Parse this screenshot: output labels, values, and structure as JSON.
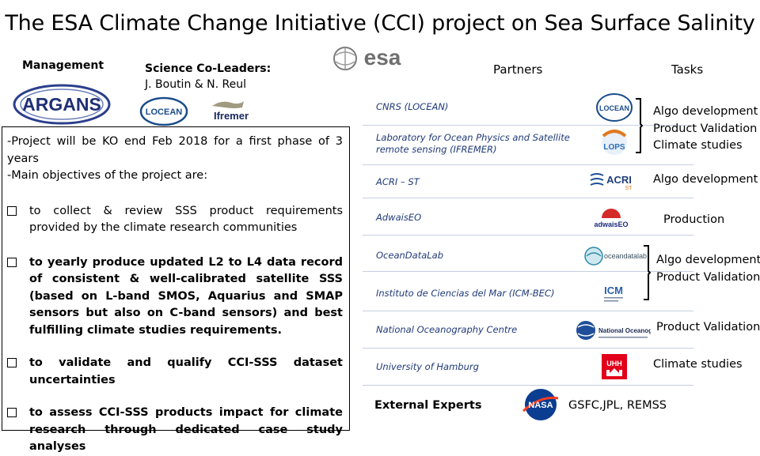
{
  "title": "The ESA Climate Change Initiative (CCI) project  on Sea Surface Salinity",
  "management": {
    "heading": "Management",
    "logo_text": "ARGANS"
  },
  "science": {
    "heading": "Science Co-Leaders:",
    "names": "J. Boutin & N. Reul",
    "logo_locean": "LOCEAN",
    "logo_ifremer": "Ifremer"
  },
  "esa_logo_text": "esa",
  "headers": {
    "partners": "Partners",
    "tasks": "Tasks"
  },
  "intro": {
    "line1": "-Project will be KO end Feb 2018 for a first phase of 3 years",
    "line2": "-Main objectives of the project are:"
  },
  "objectives": [
    "to collect & review SSS product requirements provided by the climate research communities",
    "to yearly produce updated L2 to L4 data record of consistent & well-calibrated satellite SSS (based on L-band SMOS, Aquarius and SMAP sensors but also on C-band sensors) and best fulfilling climate studies requirements.",
    "to validate and qualify CCI-SSS dataset uncertainties",
    "to assess CCI-SSS products impact for climate research through dedicated case study analyses"
  ],
  "partners": [
    "CNRS (LOCEAN)",
    "Laboratory for Ocean Physics and Satellite remote sensing (IFREMER)",
    "ACRI – ST",
    "AdwaisEO",
    "OceanDataLab",
    "Instituto de Ciencias del Mar (ICM-BEC)",
    "National Oceanography Centre",
    "University of Hamburg"
  ],
  "partner_logos": {
    "locean": "LOCEAN",
    "lops": "LOPS",
    "acri": "ACRI",
    "acri_sub": "ST",
    "adwais": "adwaisEO",
    "oceandatalab": "oceandatalab",
    "icm": "ICM",
    "noc": "National Oceanography Ce",
    "uhh": "UHH"
  },
  "tasks": {
    "group1": [
      "Algo development",
      "Product Validation",
      "Climate studies"
    ],
    "acri": "Algo development",
    "adwais": "Production",
    "group2": [
      "Algo development",
      "Product Validation"
    ],
    "noc": "Product Validation",
    "uhh": "Climate studies"
  },
  "external": {
    "label": "External Experts",
    "logo": "NASA",
    "names": "GSFC,JPL, REMSS"
  }
}
